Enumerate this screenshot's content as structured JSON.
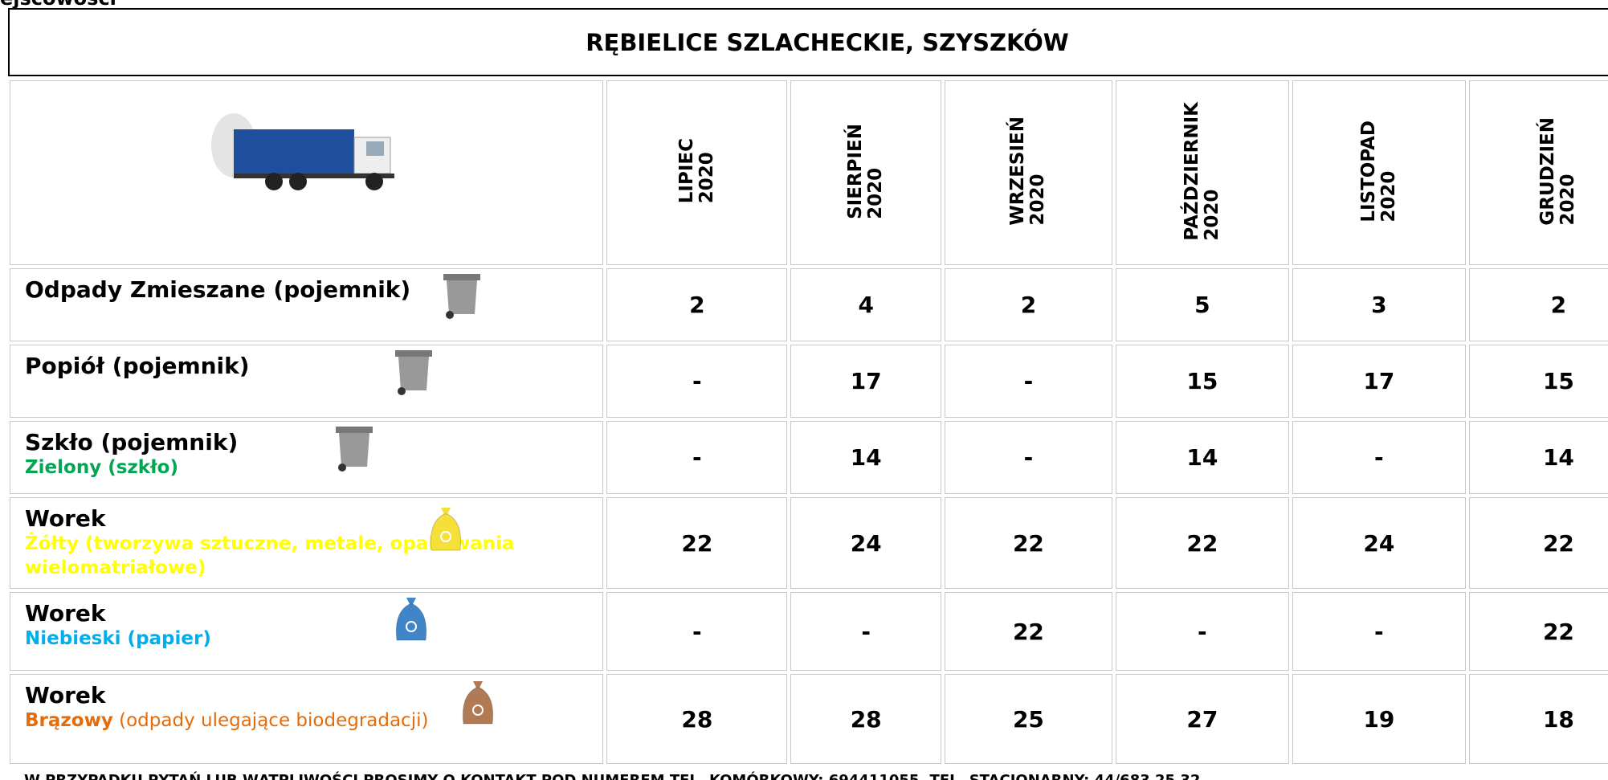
{
  "top_label": "ejscowości",
  "title": "RĘBIELICE SZLACHECKIE, SZYSZKÓW",
  "months": [
    {
      "month": "LIPIEC",
      "year": "2020"
    },
    {
      "month": "SIERPIEŃ",
      "year": "2020"
    },
    {
      "month": "WRZESIEŃ",
      "year": "2020"
    },
    {
      "month": "PAŹDZIERNIK",
      "year": "2020"
    },
    {
      "month": "LISTOPAD",
      "year": "2020"
    },
    {
      "month": "GRUDZIEŃ",
      "year": "2020"
    }
  ],
  "rows": [
    {
      "label": "Odpady Zmieszane (pojemnik)",
      "values": [
        "2",
        "4",
        "2",
        "5",
        "3",
        "2"
      ]
    },
    {
      "label": "Popiół (pojemnik)",
      "values": [
        "-",
        "17",
        "-",
        "15",
        "17",
        "15"
      ]
    },
    {
      "label": "Szkło (pojemnik)",
      "sublabel": "Zielony (szkło)",
      "values": [
        "-",
        "14",
        "-",
        "14",
        "-",
        "14"
      ]
    },
    {
      "label": "Worek",
      "sublabel": "Żółty (tworzywa sztuczne, metale, opakowania wielomatriałowe)",
      "values": [
        "22",
        "24",
        "22",
        "22",
        "24",
        "22"
      ]
    },
    {
      "label": "Worek",
      "sublabel": "Niebieski (papier)",
      "values": [
        "-",
        "-",
        "22",
        "-",
        "-",
        "22"
      ]
    },
    {
      "label": "Worek",
      "sublabel": "Brązowy",
      "sublabel_note": " (odpady ulegające biodegradacji)",
      "values": [
        "28",
        "28",
        "25",
        "27",
        "19",
        "18"
      ]
    }
  ],
  "footer": "W PRZYPADKU PYTAŃ LUB WĄTPLIWOŚCI PROSIMY O KONTAKT  POD NUMEREM  TEL. KOMÓRKOWY: 694411055,  TEL. STACJONARNY: 44/683 25 32"
}
